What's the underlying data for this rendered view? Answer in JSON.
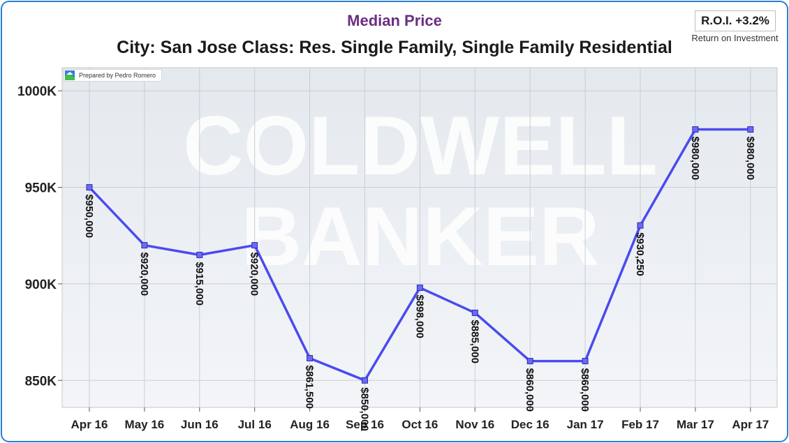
{
  "header": {
    "title": "Median Price",
    "subtitle": "City: San Jose   Class: Res. Single Family, Single Family Residential",
    "roi_label": "R.O.I. +3.2%",
    "roi_caption": "Return on Investment",
    "prepared_by": "Prepared by Pedro Romero"
  },
  "colors": {
    "line": "#4a4af0",
    "marker_fill": "#6a6af5",
    "title": "#6a2f82",
    "frame": "#2a7fd4"
  },
  "chart_data": {
    "type": "line",
    "title": "Median Price",
    "subtitle": "City: San Jose   Class: Res. Single Family, Single Family Residential",
    "categories": [
      "Apr 16",
      "May 16",
      "Jun 16",
      "Jul 16",
      "Aug 16",
      "Sep 16",
      "Oct 16",
      "Nov 16",
      "Dec 16",
      "Jan 17",
      "Feb 17",
      "Mar 17",
      "Apr 17"
    ],
    "values": [
      950000,
      920000,
      915000,
      920000,
      861500,
      850000,
      898000,
      885000,
      860000,
      860000,
      930250,
      980000,
      980000
    ],
    "data_labels": [
      "$950,000",
      "$920,000",
      "$915,000",
      "$920,000",
      "$861,500",
      "$850,000",
      "$898,000",
      "$885,000",
      "$860,000",
      "$860,000",
      "$930,250",
      "$980,000",
      "$980,000"
    ],
    "yticks": [
      850000,
      900000,
      950000,
      1000000
    ],
    "ytick_labels": [
      "850K",
      "900K",
      "950K",
      "1000K"
    ],
    "ylim": [
      836000,
      1012000
    ],
    "grid": true,
    "legend": "none"
  }
}
